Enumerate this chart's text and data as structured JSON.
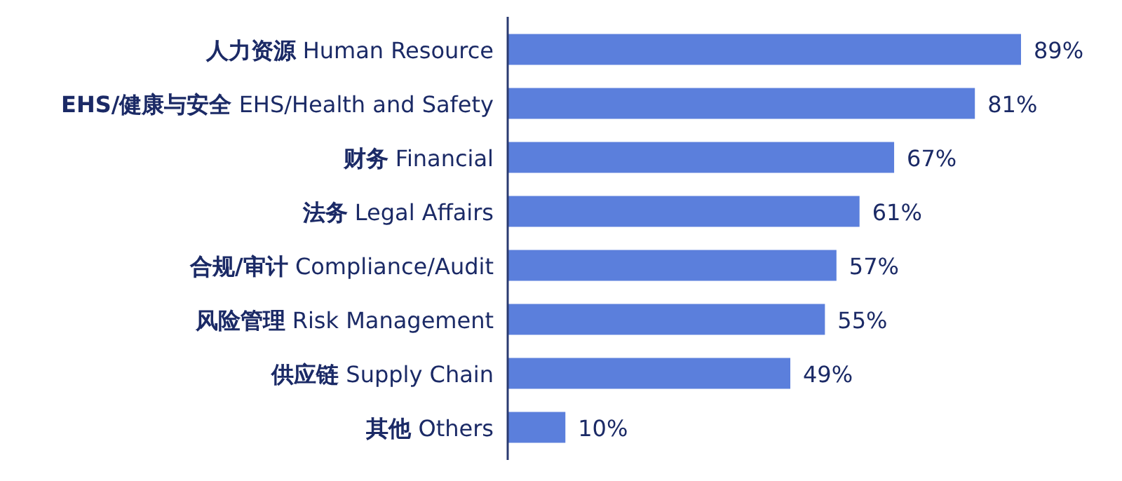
{
  "chart_data": {
    "type": "bar",
    "orientation": "horizontal",
    "tick_labels": "y",
    "value_labels": [
      "89%",
      "81%",
      "67%",
      "61%",
      "57%",
      "55%",
      "49%",
      "10%"
    ],
    "categories": [
      "人力资源 Human Resource",
      "EHS/健康与安全 EHS/Health and Safety",
      "财务 Financial",
      "法务 Legal Affairs",
      "合规/审计 Compliance/Audit",
      "风险管理 Risk Management",
      "供应链 Supply Chain",
      "其他 Others"
    ],
    "values": [
      89,
      81,
      67,
      61,
      57,
      55,
      49,
      10
    ],
    "color": "#5b7fdc"
  }
}
